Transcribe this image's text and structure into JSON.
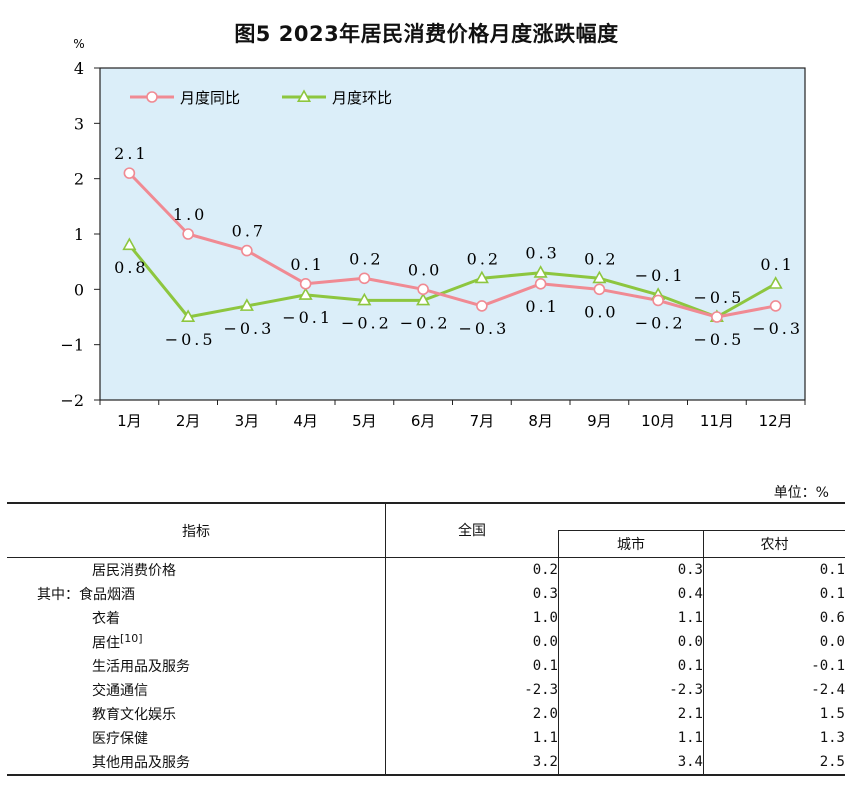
{
  "title": "图5    2023年居民消费价格月度涨跌幅度",
  "chart_data": {
    "type": "line",
    "unit": "%",
    "categories": [
      "1月",
      "2月",
      "3月",
      "4月",
      "5月",
      "6月",
      "7月",
      "8月",
      "9月",
      "10月",
      "11月",
      "12月"
    ],
    "ylim": [
      -2,
      4
    ],
    "yticks": [
      4,
      3,
      2,
      1,
      0,
      -1,
      -2
    ],
    "ytick_labels": [
      "4",
      "3",
      "2",
      "1",
      "0",
      "−1",
      "−2"
    ],
    "legend_position": "top-left",
    "series": [
      {
        "name": "月度同比",
        "color": "#f08a93",
        "marker": "circle",
        "values": [
          2.1,
          1.0,
          0.7,
          0.1,
          0.2,
          0.0,
          -0.3,
          0.1,
          0.0,
          -0.2,
          -0.5,
          -0.3
        ],
        "labels": [
          "2.1",
          "1.0",
          "0.7",
          "0.1",
          "0.2",
          "0.0",
          "−0.3",
          "0.1",
          "0.0",
          "−0.2",
          "−0.5",
          "−0.3"
        ]
      },
      {
        "name": "月度环比",
        "color": "#8dc63f",
        "marker": "triangle",
        "values": [
          0.8,
          -0.5,
          -0.3,
          -0.1,
          -0.2,
          -0.2,
          0.2,
          0.3,
          0.2,
          -0.1,
          -0.5,
          0.1
        ],
        "labels": [
          "0.8",
          "−0.5",
          "−0.3",
          "−0.1",
          "−0.2",
          "−0.2",
          "0.2",
          "0.3",
          "0.2",
          "−0.1",
          "−0.5",
          "0.1"
        ]
      }
    ]
  },
  "table": {
    "unit": "单位：%",
    "headers": {
      "indicator": "指标",
      "national": "全国",
      "urban": "城市",
      "rural": "农村"
    },
    "rows": [
      {
        "label": "居民消费价格",
        "national": "0.2",
        "urban": "0.3",
        "rural": "0.1"
      },
      {
        "label": "其中：食品烟酒",
        "national": "0.3",
        "urban": "0.4",
        "rural": "0.1"
      },
      {
        "label": "衣着",
        "national": "1.0",
        "urban": "1.1",
        "rural": "0.6"
      },
      {
        "label": "居住",
        "note": "[10]",
        "national": "0.0",
        "urban": "0.0",
        "rural": "0.0"
      },
      {
        "label": "生活用品及服务",
        "national": "0.1",
        "urban": "0.1",
        "rural": "-0.1"
      },
      {
        "label": "交通通信",
        "national": "-2.3",
        "urban": "-2.3",
        "rural": "-2.4"
      },
      {
        "label": "教育文化娱乐",
        "national": "2.0",
        "urban": "2.1",
        "rural": "1.5"
      },
      {
        "label": "医疗保健",
        "national": "1.1",
        "urban": "1.1",
        "rural": "1.3"
      },
      {
        "label": "其他用品及服务",
        "national": "3.2",
        "urban": "3.4",
        "rural": "2.5"
      }
    ]
  }
}
